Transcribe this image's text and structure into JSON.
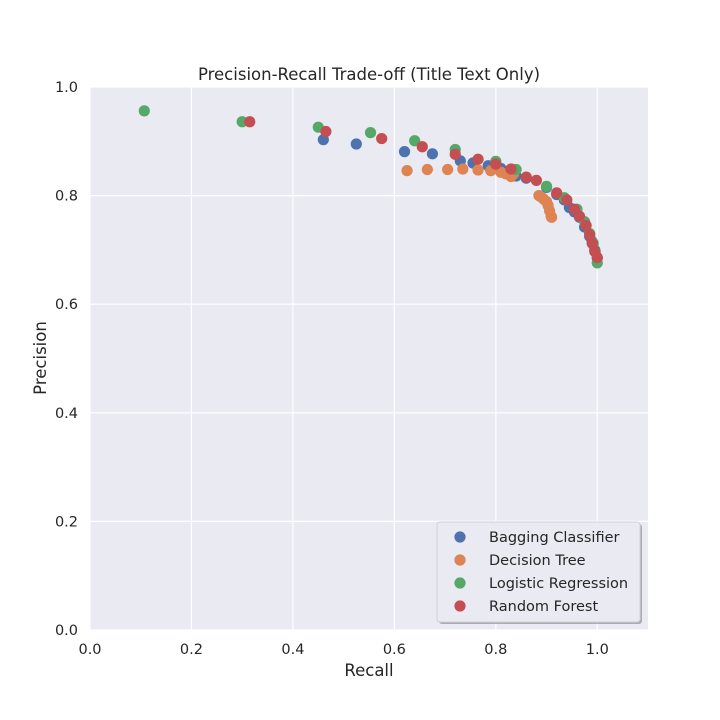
{
  "chart_data": {
    "type": "scatter",
    "title": "Precision-Recall Trade-off (Title Text Only)",
    "xlabel": "Recall",
    "ylabel": "Precision",
    "xlim": [
      0.0,
      1.1
    ],
    "ylim": [
      0.0,
      1.0
    ],
    "xticks": [
      "0.0",
      "0.2",
      "0.4",
      "0.6",
      "0.8",
      "1.0"
    ],
    "yticks": [
      "0.0",
      "0.2",
      "0.4",
      "0.6",
      "0.8",
      "1.0"
    ],
    "grid": true,
    "legend_position": "lower-right",
    "series": [
      {
        "name": "Bagging Classifier",
        "color": "#4c72b0",
        "points": [
          [
            0.46,
            0.903
          ],
          [
            0.525,
            0.895
          ],
          [
            0.62,
            0.881
          ],
          [
            0.675,
            0.877
          ],
          [
            0.73,
            0.864
          ],
          [
            0.755,
            0.86
          ],
          [
            0.785,
            0.855
          ],
          [
            0.81,
            0.85
          ],
          [
            0.84,
            0.836
          ],
          [
            0.86,
            0.832
          ],
          [
            0.9,
            0.815
          ],
          [
            0.92,
            0.802
          ],
          [
            0.935,
            0.792
          ],
          [
            0.945,
            0.778
          ],
          [
            0.955,
            0.77
          ],
          [
            0.965,
            0.76
          ],
          [
            0.975,
            0.742
          ],
          [
            0.985,
            0.725
          ],
          [
            0.99,
            0.715
          ],
          [
            0.995,
            0.7
          ],
          [
            1.0,
            0.685
          ]
        ]
      },
      {
        "name": "Decision Tree",
        "color": "#dd8452",
        "points": [
          [
            0.625,
            0.846
          ],
          [
            0.665,
            0.848
          ],
          [
            0.705,
            0.848
          ],
          [
            0.735,
            0.849
          ],
          [
            0.765,
            0.847
          ],
          [
            0.79,
            0.846
          ],
          [
            0.81,
            0.843
          ],
          [
            0.82,
            0.84
          ],
          [
            0.83,
            0.835
          ],
          [
            0.835,
            0.84
          ],
          [
            0.885,
            0.8
          ],
          [
            0.89,
            0.797
          ],
          [
            0.895,
            0.793
          ],
          [
            0.9,
            0.789
          ],
          [
            0.903,
            0.782
          ],
          [
            0.906,
            0.772
          ],
          [
            0.909,
            0.762
          ],
          [
            0.91,
            0.76
          ]
        ]
      },
      {
        "name": "Logistic Regression",
        "color": "#55a868",
        "points": [
          [
            0.107,
            0.956
          ],
          [
            0.3,
            0.936
          ],
          [
            0.45,
            0.926
          ],
          [
            0.553,
            0.916
          ],
          [
            0.64,
            0.901
          ],
          [
            0.72,
            0.885
          ],
          [
            0.8,
            0.863
          ],
          [
            0.84,
            0.848
          ],
          [
            0.9,
            0.817
          ],
          [
            0.935,
            0.796
          ],
          [
            0.96,
            0.775
          ],
          [
            0.975,
            0.752
          ],
          [
            0.985,
            0.73
          ],
          [
            0.992,
            0.712
          ],
          [
            0.996,
            0.697
          ],
          [
            1.0,
            0.676
          ]
        ]
      },
      {
        "name": "Random Forest",
        "color": "#c44e52",
        "points": [
          [
            0.315,
            0.936
          ],
          [
            0.465,
            0.918
          ],
          [
            0.575,
            0.905
          ],
          [
            0.655,
            0.89
          ],
          [
            0.72,
            0.876
          ],
          [
            0.765,
            0.867
          ],
          [
            0.8,
            0.858
          ],
          [
            0.83,
            0.849
          ],
          [
            0.86,
            0.834
          ],
          [
            0.88,
            0.828
          ],
          [
            0.92,
            0.805
          ],
          [
            0.94,
            0.792
          ],
          [
            0.955,
            0.775
          ],
          [
            0.965,
            0.762
          ],
          [
            0.978,
            0.745
          ],
          [
            0.985,
            0.728
          ],
          [
            0.99,
            0.712
          ],
          [
            0.995,
            0.697
          ],
          [
            1.0,
            0.686
          ]
        ]
      }
    ]
  }
}
